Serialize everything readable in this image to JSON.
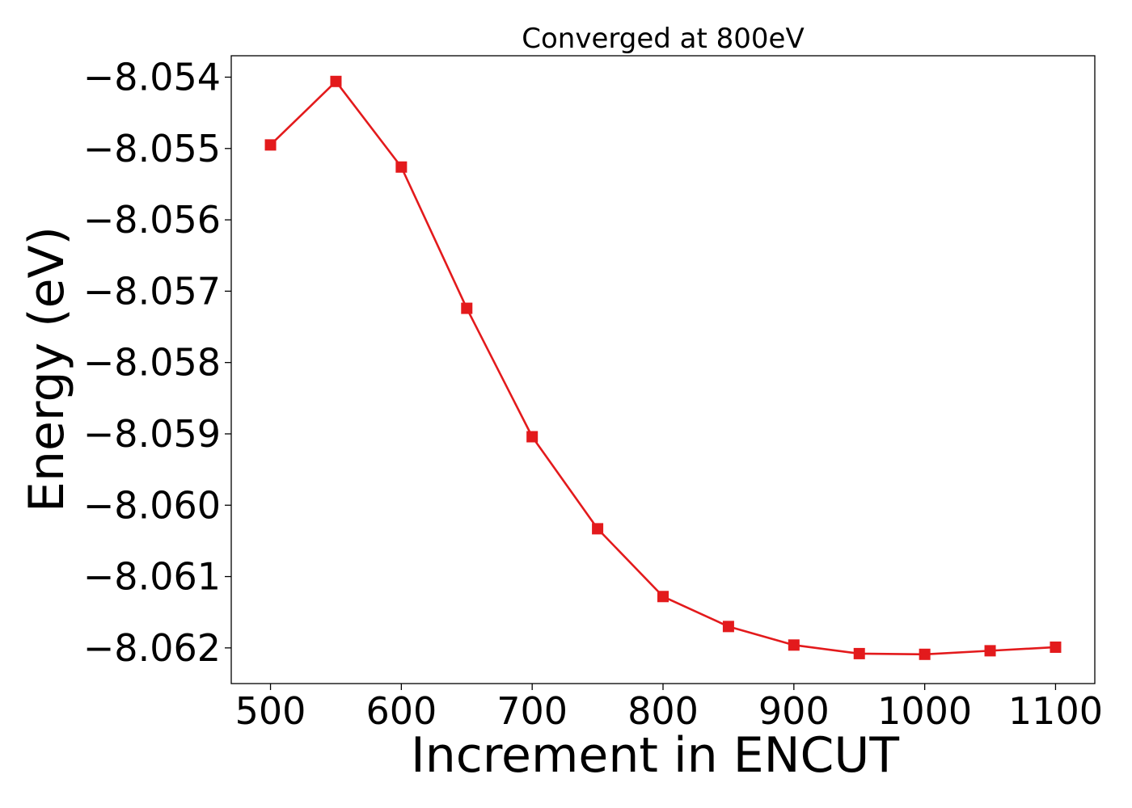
{
  "chart_data": {
    "type": "line",
    "title": "Converged at 800eV",
    "xlabel": "Increment in ENCUT",
    "ylabel": "Energy (eV)",
    "xlim": [
      470,
      1130
    ],
    "ylim": [
      -8.0625,
      -8.0537
    ],
    "xticks": [
      500,
      600,
      700,
      800,
      900,
      1000,
      1100
    ],
    "xtick_labels": [
      "500",
      "600",
      "700",
      "800",
      "900",
      "1000",
      "1100"
    ],
    "yticks": [
      -8.054,
      -8.055,
      -8.056,
      -8.057,
      -8.058,
      -8.059,
      -8.06,
      -8.061,
      -8.062
    ],
    "ytick_labels": [
      "−8.054",
      "−8.055",
      "−8.056",
      "−8.057",
      "−8.058",
      "−8.059",
      "−8.060",
      "−8.061",
      "−8.062"
    ],
    "grid": false,
    "marker": "square",
    "color": "#e31a1c",
    "x": [
      500,
      550,
      600,
      650,
      700,
      750,
      800,
      850,
      900,
      950,
      1000,
      1050,
      1100
    ],
    "y": [
      -8.05495,
      -8.05406,
      -8.05526,
      -8.05724,
      -8.05904,
      -8.06033,
      -8.06128,
      -8.0617,
      -8.06196,
      -8.06208,
      -8.06209,
      -8.06204,
      -8.06199
    ]
  }
}
